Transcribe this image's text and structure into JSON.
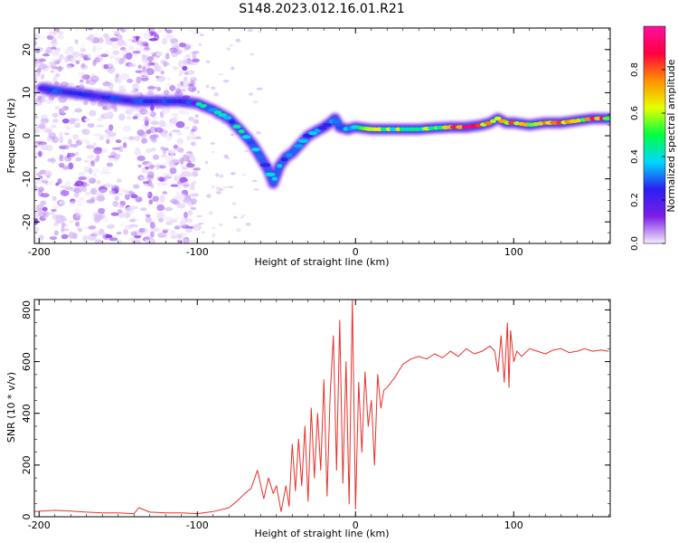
{
  "title": "S148.2023.012.16.01.R21",
  "chart_data": [
    {
      "type": "heatmap",
      "xlabel": "Height of straight line (km)",
      "ylabel": "Frequency (Hz)",
      "xlim": [
        -203,
        161
      ],
      "ylim": [
        -25,
        25
      ],
      "xticks": [
        -200,
        -100,
        0,
        100
      ],
      "yticks": [
        -20,
        -10,
        0,
        10,
        20
      ],
      "grid": false,
      "colorbar": {
        "label": "Normalized spectral amplitude",
        "range": [
          0,
          1
        ],
        "ticks": [
          "0.0",
          "0.2",
          "0.4",
          "0.6",
          "0.8"
        ],
        "colormap": [
          "#f4ecfc",
          "#7d1ee8",
          "#2a1ff0",
          "#00d8ff",
          "#00ff40",
          "#e8ff00",
          "#ff9000",
          "#ff0040",
          "#ff10a0"
        ]
      },
      "ridge": {
        "name": "frequency trace",
        "x": [
          -198,
          -190,
          -180,
          -170,
          -160,
          -150,
          -140,
          -130,
          -120,
          -110,
          -100,
          -90,
          -80,
          -72,
          -65,
          -60,
          -55,
          -52,
          -48,
          -44,
          -40,
          -35,
          -30,
          -25,
          -20,
          -16,
          -13,
          -10,
          -5,
          0,
          10,
          20,
          30,
          40,
          50,
          60,
          70,
          80,
          85,
          90,
          95,
          100,
          110,
          120,
          130,
          140,
          150,
          160
        ],
        "y": [
          11,
          10.5,
          10,
          9.5,
          9,
          8.5,
          8,
          8,
          8,
          8,
          7.5,
          6,
          4,
          1,
          -2,
          -5,
          -8,
          -11,
          -7,
          -5,
          -4,
          -2,
          0,
          1,
          2,
          3,
          4,
          2,
          1.5,
          2,
          1.5,
          1.5,
          1.5,
          1.5,
          1.8,
          2,
          2,
          2.5,
          3,
          4,
          3,
          3,
          2.5,
          3,
          3,
          3.5,
          4,
          4
        ]
      },
      "noise_region_x": [
        -203,
        -100
      ]
    },
    {
      "type": "line",
      "xlabel": "Height of straight line (km)",
      "ylabel": "SNR (10 * v/v)",
      "xlim": [
        -203,
        161
      ],
      "ylim": [
        0,
        840
      ],
      "xticks": [
        -200,
        -100,
        0,
        100
      ],
      "yticks": [
        0,
        200,
        400,
        600,
        800
      ],
      "grid": false,
      "series": [
        {
          "color": "#e8302a",
          "x": [
            -203,
            -190,
            -180,
            -170,
            -160,
            -150,
            -140,
            -137,
            -130,
            -120,
            -110,
            -100,
            -90,
            -80,
            -75,
            -70,
            -66,
            -62,
            -58,
            -55,
            -52,
            -50,
            -47,
            -44,
            -42,
            -40,
            -38,
            -36,
            -34,
            -32,
            -30,
            -28,
            -26,
            -24,
            -22,
            -20,
            -18,
            -16,
            -14,
            -12,
            -10,
            -8,
            -6,
            -4,
            -2,
            0,
            2,
            4,
            6,
            8,
            10,
            12,
            14,
            16,
            18,
            20,
            25,
            30,
            35,
            40,
            45,
            50,
            55,
            60,
            65,
            70,
            75,
            80,
            85,
            88,
            90,
            92,
            94,
            96,
            97,
            98,
            100,
            102,
            105,
            110,
            115,
            120,
            125,
            130,
            135,
            140,
            145,
            150,
            155,
            160
          ],
          "y": [
            20,
            25,
            22,
            18,
            15,
            15,
            12,
            35,
            18,
            15,
            15,
            12,
            20,
            35,
            60,
            90,
            110,
            180,
            70,
            150,
            90,
            120,
            20,
            120,
            40,
            280,
            100,
            300,
            120,
            350,
            60,
            420,
            150,
            400,
            180,
            530,
            80,
            470,
            700,
            180,
            760,
            130,
            600,
            50,
            840,
            30,
            520,
            250,
            560,
            350,
            450,
            200,
            550,
            420,
            490,
            500,
            540,
            590,
            610,
            620,
            610,
            630,
            615,
            640,
            620,
            650,
            630,
            640,
            660,
            640,
            560,
            700,
            520,
            750,
            500,
            720,
            600,
            640,
            620,
            650,
            640,
            630,
            645,
            650,
            635,
            640,
            650,
            640,
            645,
            640
          ]
        }
      ]
    }
  ]
}
